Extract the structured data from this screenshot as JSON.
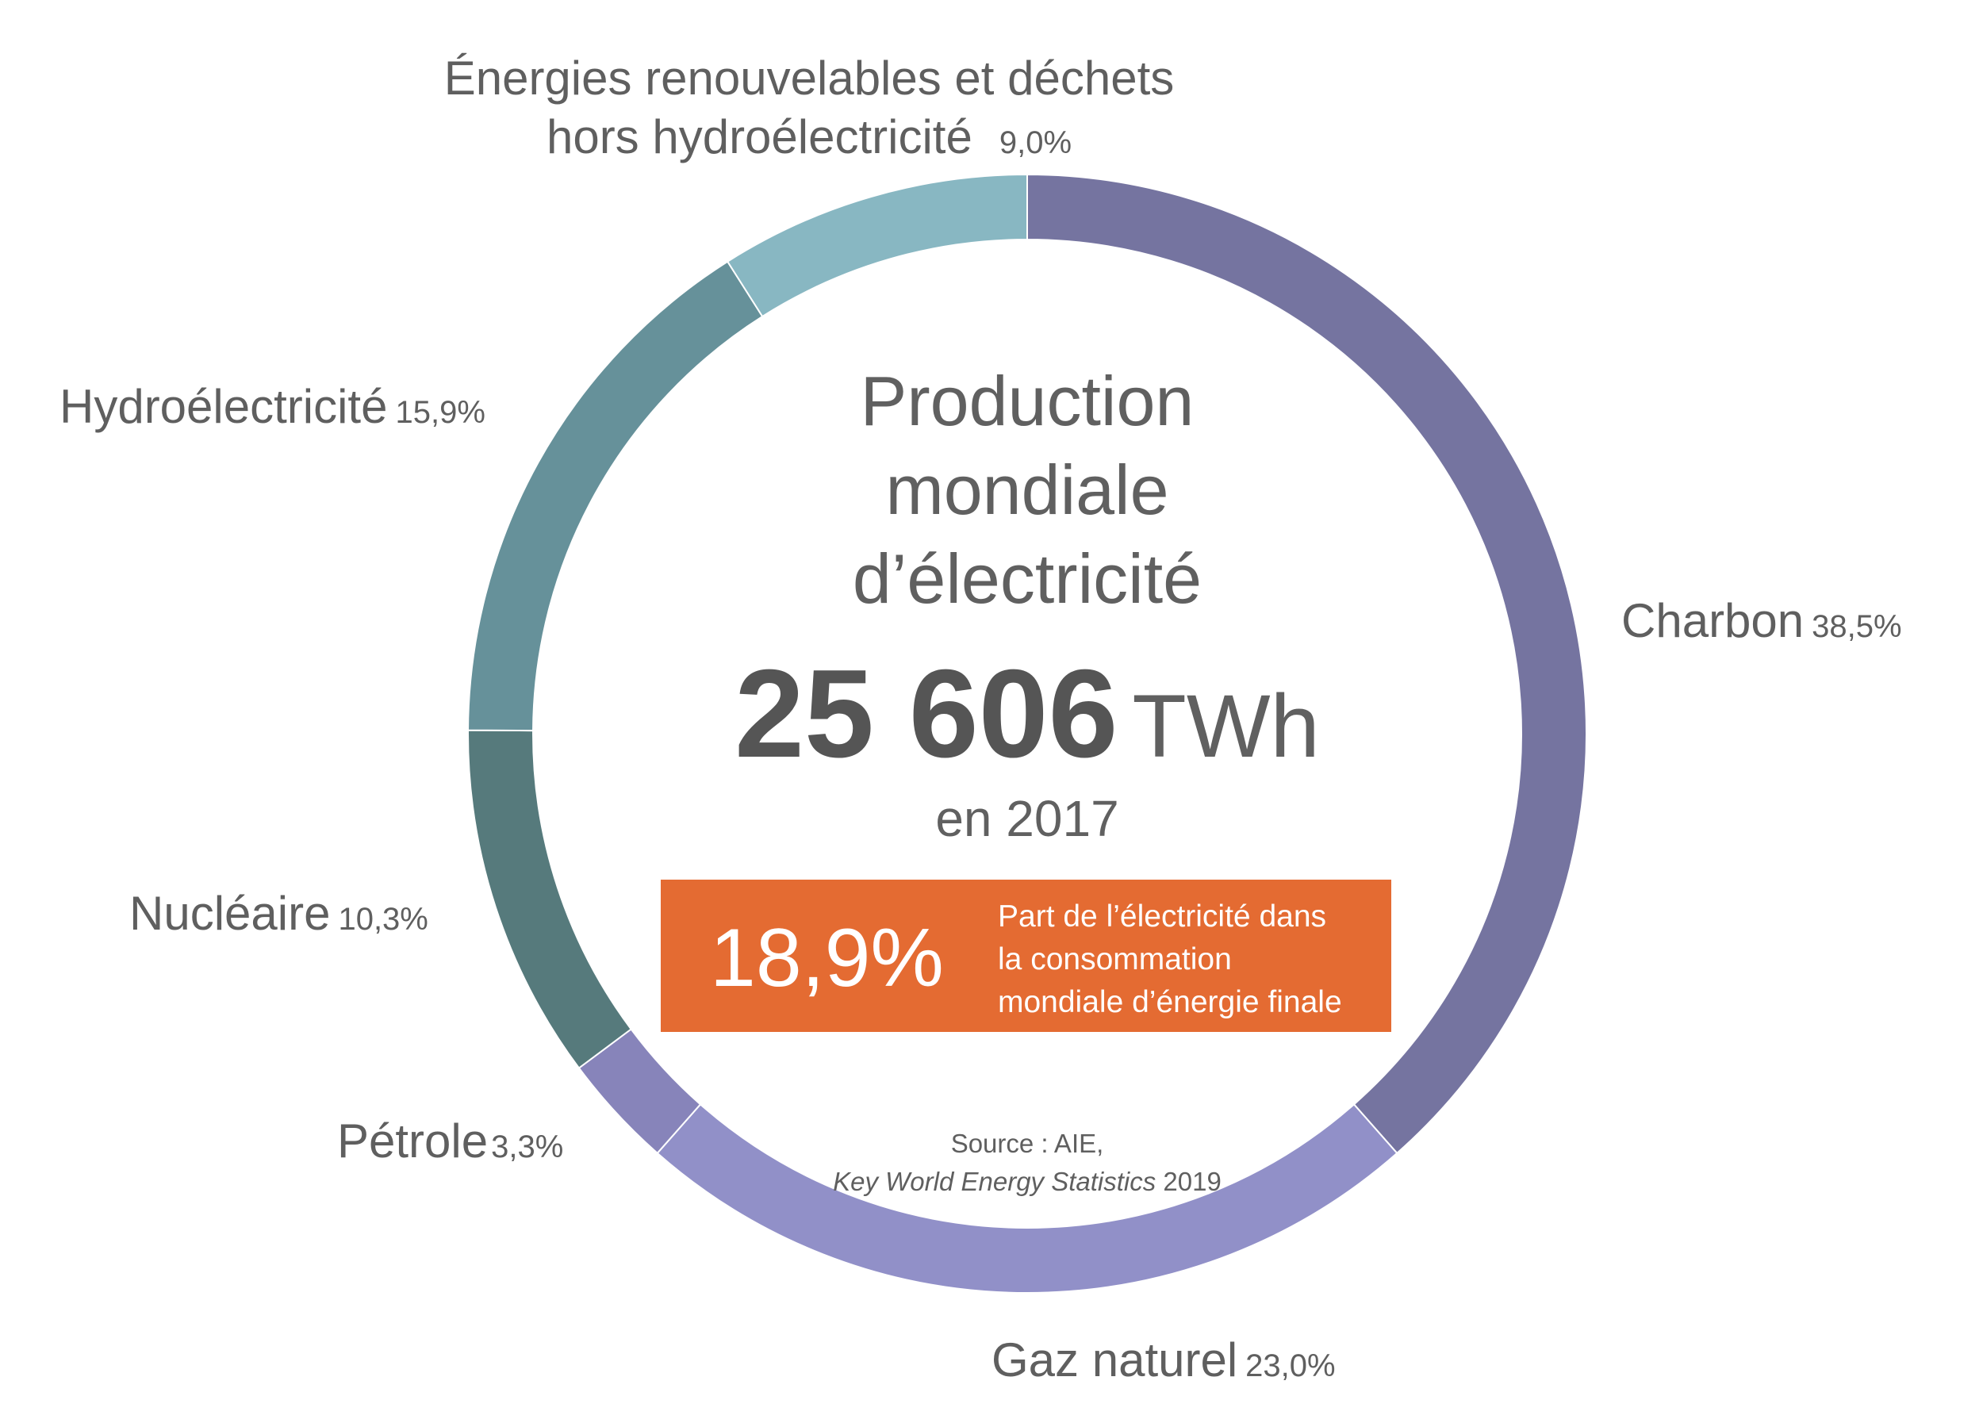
{
  "chart_data": {
    "type": "pie",
    "donut": true,
    "slices": [
      {
        "label": "Charbon",
        "value": 38.5,
        "display": "38,5%",
        "color": "#7574a0"
      },
      {
        "label": "Gaz naturel",
        "value": 23.0,
        "display": "23,0%",
        "color": "#9190c8"
      },
      {
        "label": "Pétrole",
        "value": 3.3,
        "display": "3,3%",
        "color": "#8784ba"
      },
      {
        "label": "Nucléaire",
        "value": 10.3,
        "display": "10,3%",
        "color": "#567a7c"
      },
      {
        "label": "Hydroélectricité",
        "value": 15.9,
        "display": "15,9%",
        "color": "#66919a"
      },
      {
        "label_line1": "Énergies renouvelables et déchets",
        "label_line2": "hors hydroélectricité",
        "value": 9.0,
        "display": "9,0%",
        "color": "#88b7c2"
      }
    ],
    "title_lines": [
      "Production",
      "mondiale",
      "d’électricité"
    ],
    "total_value": "25 606",
    "total_unit": "TWh",
    "year_text": "en 2017",
    "highlight": {
      "value": "18,9%",
      "text_lines": [
        "Part de l’électricité dans",
        "la consommation",
        "mondiale d’énergie finale"
      ],
      "color": "#e46b32"
    },
    "source_line1": "Source : AIE,",
    "source_italic": "Key World Energy Statistics",
    "source_year": " 2019"
  }
}
